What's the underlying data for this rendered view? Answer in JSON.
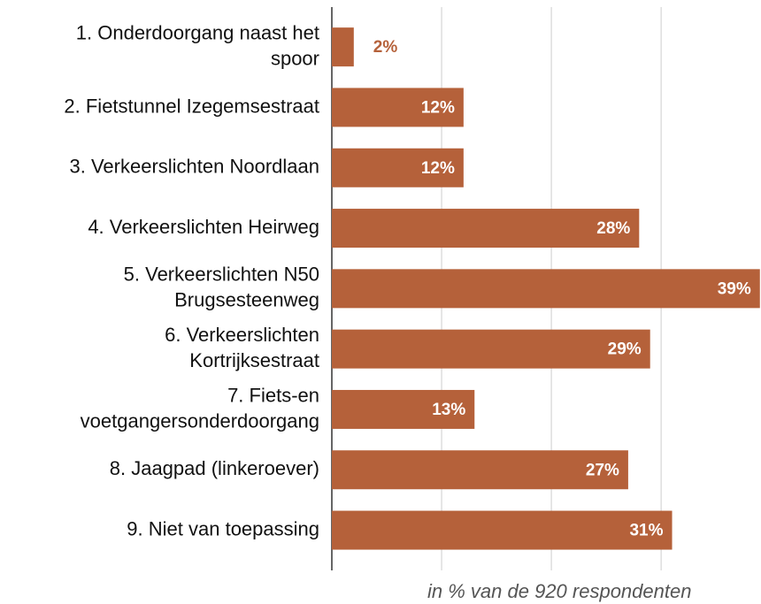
{
  "chart_data": {
    "type": "bar",
    "orientation": "horizontal",
    "categories": [
      [
        "1. Onderdoorgang naast het",
        "spoor"
      ],
      [
        "2. Fietstunnel Izegemsestraat"
      ],
      [
        "3. Verkeerslichten Noordlaan"
      ],
      [
        "4. Verkeerslichten Heirweg"
      ],
      [
        "5. Verkeerslichten N50",
        "Brugsesteenweg"
      ],
      [
        "6. Verkeerslichten",
        "Kortrijksestraat"
      ],
      [
        "7. Fiets-en",
        "voetgangersonderdoorgang"
      ],
      [
        "8. Jaagpad (linkeroever)"
      ],
      [
        "9. Niet van toepassing"
      ]
    ],
    "values": [
      2,
      12,
      12,
      28,
      39,
      29,
      13,
      27,
      31
    ],
    "value_labels": [
      "2%",
      "12%",
      "12%",
      "28%",
      "39%",
      "29%",
      "13%",
      "27%",
      "31%"
    ],
    "color": "#b5613a",
    "xlim": [
      0,
      39.1
    ],
    "xticks": [
      0,
      10,
      20,
      30
    ],
    "grid": true,
    "note": "in % van de 920 respondenten"
  }
}
